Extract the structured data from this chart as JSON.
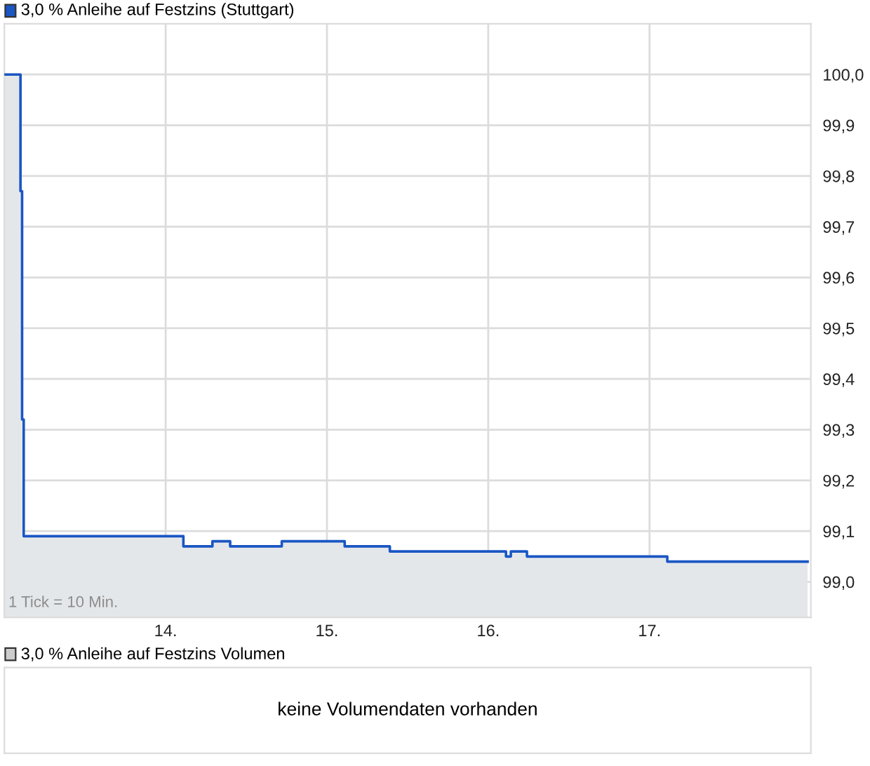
{
  "chart_data": [
    {
      "type": "area",
      "legend": "top left",
      "grid": true,
      "x": [
        13.0,
        13.1,
        13.1,
        13.11,
        13.11,
        13.12,
        13.12,
        14.11,
        14.11,
        14.29,
        14.29,
        14.4,
        14.4,
        14.72,
        14.72,
        15.11,
        15.11,
        15.39,
        15.39,
        16.11,
        16.11,
        16.14,
        16.14,
        16.24,
        16.24,
        17.11,
        17.11,
        17.98
      ],
      "series": [
        {
          "name": "3,0 % Anleihe auf Festzins (Stuttgart)",
          "color": "#1a56c4",
          "values": [
            100.0,
            100.0,
            99.77,
            99.77,
            99.32,
            99.32,
            99.09,
            99.09,
            99.07,
            99.07,
            99.08,
            99.08,
            99.07,
            99.07,
            99.08,
            99.08,
            99.07,
            99.07,
            99.06,
            99.06,
            99.05,
            99.05,
            99.06,
            99.06,
            99.05,
            99.05,
            99.04,
            99.04
          ]
        }
      ],
      "xlim": [
        13.0,
        18.0
      ],
      "xticks": [
        {
          "value": 14,
          "label": "14."
        },
        {
          "value": 15,
          "label": "15."
        },
        {
          "value": 16,
          "label": "16."
        },
        {
          "value": 17,
          "label": "17."
        }
      ],
      "ylim": [
        98.93,
        100.1
      ],
      "yticks": [
        {
          "value": 99.0,
          "label": "99,0"
        },
        {
          "value": 99.1,
          "label": "99,1"
        },
        {
          "value": 99.2,
          "label": "99,2"
        },
        {
          "value": 99.3,
          "label": "99,3"
        },
        {
          "value": 99.4,
          "label": "99,4"
        },
        {
          "value": 99.5,
          "label": "99,5"
        },
        {
          "value": 99.6,
          "label": "99,6"
        },
        {
          "value": 99.7,
          "label": "99,7"
        },
        {
          "value": 99.8,
          "label": "99,8"
        },
        {
          "value": 99.9,
          "label": "99,9"
        },
        {
          "value": 100.0,
          "label": "100,0"
        }
      ],
      "annotations": [
        "1 Tick = 10 Min."
      ]
    },
    {
      "type": "other",
      "title": "3,0 % Anleihe auf Festzins Volumen",
      "annotations": [
        "keine Volumendaten vorhanden"
      ]
    }
  ]
}
